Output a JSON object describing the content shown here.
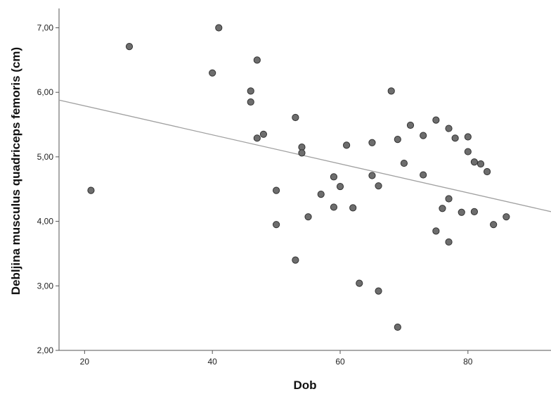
{
  "chart_data": {
    "type": "scatter",
    "title": "",
    "xlabel": "Dob",
    "ylabel": "Debljina musculus quadriceps femoris (cm)",
    "xlim": [
      16,
      93
    ],
    "ylim": [
      2.0,
      7.3
    ],
    "x_ticks": [
      20,
      40,
      60,
      80
    ],
    "x_tick_labels": [
      "20",
      "40",
      "60",
      "80"
    ],
    "y_ticks": [
      2,
      3,
      4,
      5,
      6,
      7
    ],
    "y_tick_labels": [
      "2,00",
      "3,00",
      "4,00",
      "5,00",
      "6,00",
      "7,00"
    ],
    "grid": false,
    "legend": "none",
    "colors": {
      "point_fill": "#6d6d6d",
      "point_stroke": "#333333",
      "fit_line": "#a0a0a0",
      "axis": "#555555"
    },
    "points": [
      [
        21,
        4.48
      ],
      [
        27,
        6.71
      ],
      [
        40,
        6.3
      ],
      [
        41,
        7.0
      ],
      [
        46,
        6.02
      ],
      [
        46,
        5.85
      ],
      [
        47,
        6.5
      ],
      [
        47,
        5.29
      ],
      [
        48,
        5.35
      ],
      [
        50,
        4.48
      ],
      [
        50,
        3.95
      ],
      [
        53,
        5.61
      ],
      [
        53,
        3.4
      ],
      [
        54,
        5.15
      ],
      [
        54,
        5.06
      ],
      [
        55,
        4.07
      ],
      [
        57,
        4.42
      ],
      [
        59,
        4.69
      ],
      [
        59,
        4.22
      ],
      [
        60,
        4.54
      ],
      [
        61,
        5.18
      ],
      [
        62,
        4.21
      ],
      [
        63,
        3.04
      ],
      [
        65,
        5.22
      ],
      [
        65,
        4.71
      ],
      [
        66,
        4.55
      ],
      [
        66,
        2.92
      ],
      [
        68,
        6.02
      ],
      [
        69,
        5.27
      ],
      [
        69,
        2.36
      ],
      [
        70,
        4.9
      ],
      [
        71,
        5.49
      ],
      [
        73,
        5.33
      ],
      [
        73,
        4.72
      ],
      [
        75,
        5.57
      ],
      [
        75,
        3.85
      ],
      [
        76,
        4.2
      ],
      [
        77,
        5.44
      ],
      [
        77,
        4.35
      ],
      [
        77,
        3.68
      ],
      [
        78,
        5.29
      ],
      [
        79,
        4.14
      ],
      [
        80,
        5.31
      ],
      [
        80,
        5.08
      ],
      [
        81,
        4.92
      ],
      [
        81,
        4.15
      ],
      [
        82,
        4.89
      ],
      [
        83,
        4.77
      ],
      [
        84,
        3.95
      ],
      [
        86,
        4.07
      ]
    ],
    "fit_line": {
      "x": [
        16,
        93
      ],
      "y": [
        5.88,
        4.15
      ]
    }
  }
}
